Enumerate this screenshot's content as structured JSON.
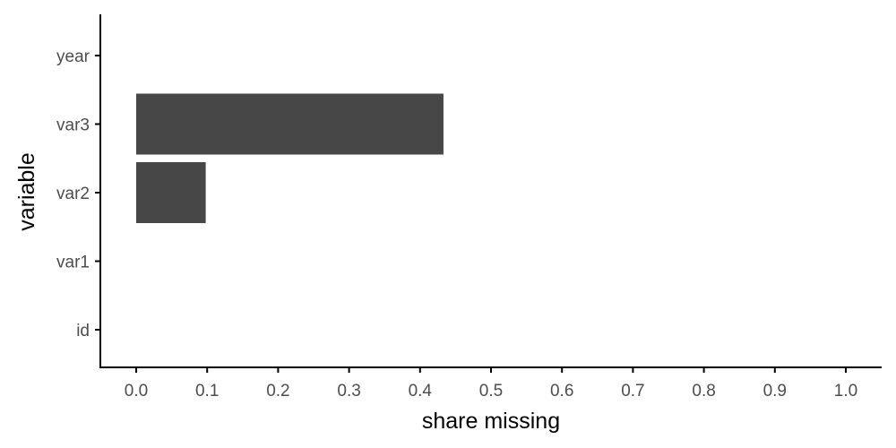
{
  "colors": {
    "bar": "#474747",
    "axis": "#000000",
    "tick_label": "#4d4d4d",
    "background": "#ffffff"
  },
  "chart_data": {
    "type": "bar",
    "orientation": "horizontal",
    "categories": [
      "id",
      "var1",
      "var2",
      "var3",
      "year"
    ],
    "values": [
      0,
      0,
      0.098,
      0.433,
      0
    ],
    "xlabel": "share missing",
    "ylabel": "variable",
    "xlim": [
      0,
      1
    ],
    "x_ticks": [
      "0.0",
      "0.1",
      "0.2",
      "0.3",
      "0.4",
      "0.5",
      "0.6",
      "0.7",
      "0.8",
      "0.9",
      "1.0"
    ],
    "grid": false,
    "legend": "none"
  }
}
